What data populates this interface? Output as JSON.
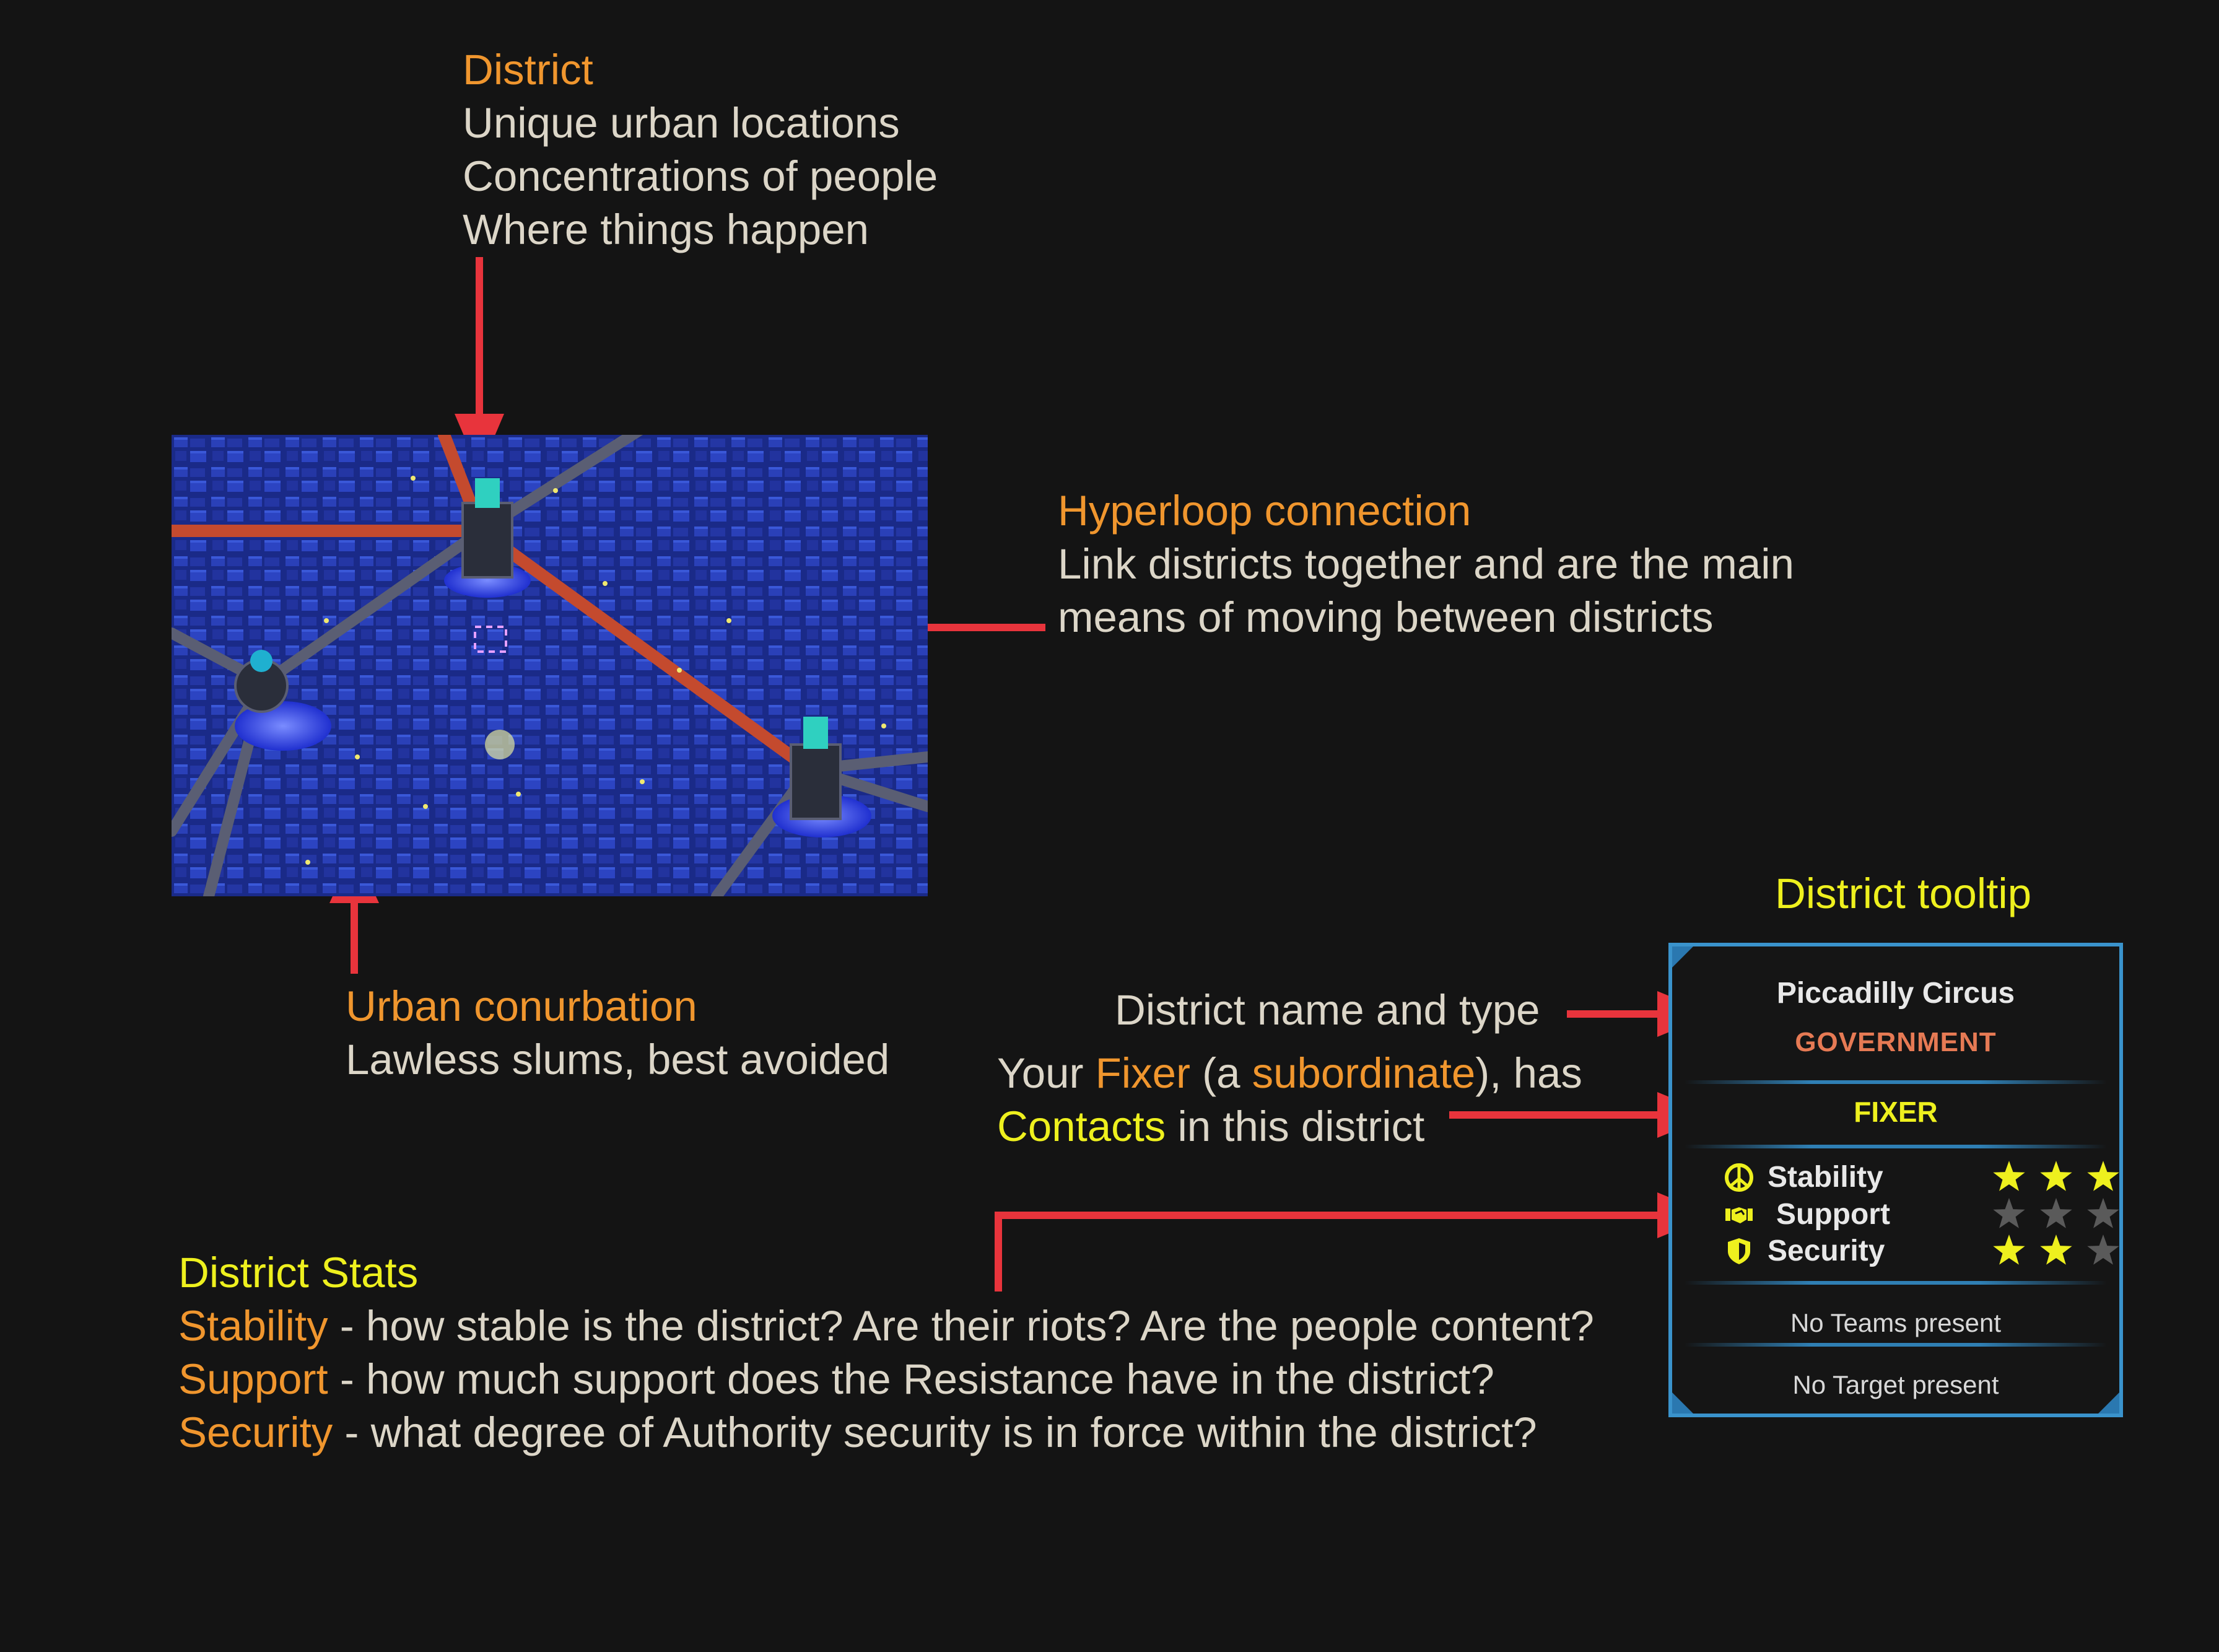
{
  "district_label": {
    "title": "District",
    "lines": [
      "Unique urban locations",
      "Concentrations of people",
      "Where things happen"
    ]
  },
  "hyperloop_label": {
    "title": "Hyperloop connection",
    "lines": [
      "Link districts together and are the main",
      "means of moving between districts"
    ]
  },
  "urban_label": {
    "title": "Urban conurbation",
    "lines": [
      "Lawless slums, best avoided"
    ]
  },
  "tooltip_caption": "District tooltip",
  "name_type_label": "District name and type",
  "fixer_label": {
    "line1_a": "Your ",
    "line1_fixer": "Fixer",
    "line1_b": " (a ",
    "line1_sub": "subordinate",
    "line1_c": "), has",
    "line2_contacts": "Contacts",
    "line2_rest": " in this district"
  },
  "stats_label": {
    "title": "District Stats",
    "rows": [
      {
        "term": "Stability",
        "desc": " - how stable is the district?  Are their riots? Are the people content?"
      },
      {
        "term": "Support",
        "desc": " - how much support does the Resistance have in the district?"
      },
      {
        "term": "Security",
        "desc": " - what degree of Authority security is in force within the district?"
      }
    ]
  },
  "tooltip": {
    "name": "Piccadilly Circus",
    "type": "GOVERNMENT",
    "fixer": "FIXER",
    "stats": [
      {
        "label": "Stability",
        "icon": "peace-icon",
        "stars": 3
      },
      {
        "label": "Support",
        "icon": "handshake-icon",
        "stars": 0
      },
      {
        "label": "Security",
        "icon": "shield-icon",
        "stars": 2
      }
    ],
    "max_stars": 3,
    "teams": "No Teams present",
    "target": "No Target present"
  },
  "colors": {
    "background": "#141414",
    "body_text": "#dcd6c8",
    "heading_orange": "#f0962e",
    "heading_yellow": "#eef01e",
    "arrow_red": "#e8343c",
    "tooltip_border": "#3a93cc",
    "star_on": "#eef01e",
    "star_off": "#5a5a5a"
  }
}
